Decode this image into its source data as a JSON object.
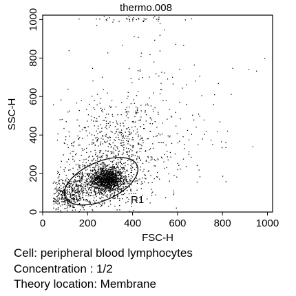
{
  "chart_data": {
    "type": "scatter",
    "title": "thermo.008",
    "xlabel": "FSC-H",
    "ylabel": "SSC-H",
    "xlim": [
      0,
      1023
    ],
    "ylim": [
      0,
      1023
    ],
    "xticks": [
      "0",
      "200",
      "400",
      "600",
      "800",
      "1000"
    ],
    "yticks": [
      "0",
      "200",
      "400",
      "600",
      "800",
      "1000"
    ],
    "point_color": "#000000",
    "gate": {
      "name": "R1",
      "shape": "ellipse",
      "center": [
        260,
        160
      ],
      "semi_axes": [
        175,
        100
      ],
      "rotation_deg": 24
    },
    "populations": [
      {
        "name": "",
        "center": [
          285,
          170
        ],
        "spread": [
          35,
          28
        ],
        "count": 900
      },
      {
        "name": "",
        "center": [
          270,
          160
        ],
        "spread": [
          75,
          55
        ],
        "count": 700
      },
      {
        "name": "",
        "center": [
          110,
          90
        ],
        "spread": [
          40,
          45
        ],
        "count": 380
      },
      {
        "name": "",
        "center": [
          330,
          330
        ],
        "spread": [
          140,
          130
        ],
        "count": 650
      },
      {
        "name": "",
        "center": [
          500,
          500
        ],
        "spread": [
          260,
          260
        ],
        "count": 170
      },
      {
        "name": "",
        "center": [
          400,
          1005
        ],
        "spread": [
          110,
          6
        ],
        "count": 40
      }
    ]
  },
  "caption": {
    "line1": "Cell: peripheral blood lymphocytes",
    "line2": "Concentration : 1/2",
    "line3": "Theory location: Membrane"
  }
}
